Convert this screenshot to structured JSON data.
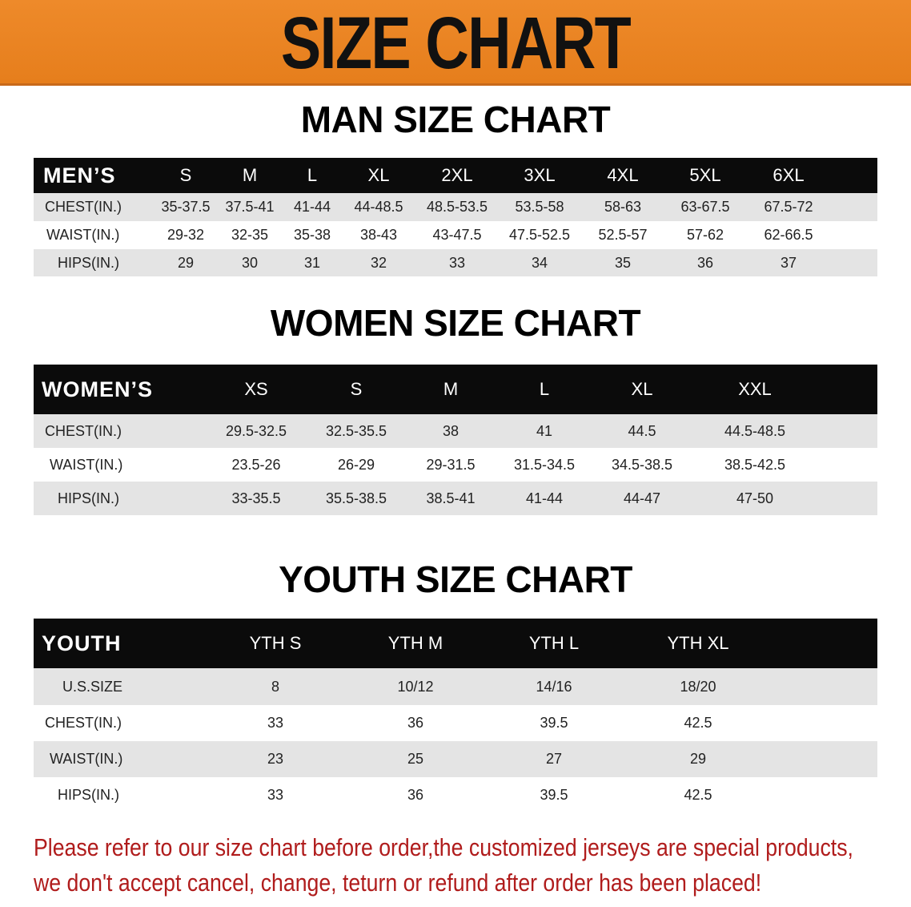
{
  "banner": {
    "title": "SIZE CHART",
    "color": "#e8831f"
  },
  "men": {
    "title": "MAN SIZE CHART",
    "header": [
      "MEN’S",
      "S",
      "M",
      "L",
      "XL",
      "2XL",
      "3XL",
      "4XL",
      "5XL",
      "6XL"
    ],
    "rows": [
      [
        "CHEST(IN.)",
        "35-37.5",
        "37.5-41",
        "41-44",
        "44-48.5",
        "48.5-53.5",
        "53.5-58",
        "58-63",
        "63-67.5",
        "67.5-72"
      ],
      [
        "WAIST(IN.)",
        "29-32",
        "32-35",
        "35-38",
        "38-43",
        "43-47.5",
        "47.5-52.5",
        "52.5-57",
        "57-62",
        "62-66.5"
      ],
      [
        "HIPS(IN.)",
        "29",
        "30",
        "31",
        "32",
        "33",
        "34",
        "35",
        "36",
        "37"
      ]
    ]
  },
  "women": {
    "title": "WOMEN SIZE CHART",
    "header": [
      "WOMEN’S",
      "XS",
      "S",
      "M",
      "L",
      "XL",
      "XXL"
    ],
    "rows": [
      [
        "CHEST(IN.)",
        "29.5-32.5",
        "32.5-35.5",
        "38",
        "41",
        "44.5",
        "44.5-48.5"
      ],
      [
        "WAIST(IN.)",
        "23.5-26",
        "26-29",
        "29-31.5",
        "31.5-34.5",
        "34.5-38.5",
        "38.5-42.5"
      ],
      [
        "HIPS(IN.)",
        "33-35.5",
        "35.5-38.5",
        "38.5-41",
        "41-44",
        "44-47",
        "47-50"
      ]
    ]
  },
  "youth": {
    "title": "YOUTH SIZE CHART",
    "header": [
      "YOUTH",
      "YTH S",
      "YTH M",
      "YTH L",
      "YTH XL"
    ],
    "rows": [
      [
        "U.S.SIZE",
        "8",
        "10/12",
        "14/16",
        "18/20"
      ],
      [
        "CHEST(IN.)",
        "33",
        "36",
        "39.5",
        "42.5"
      ],
      [
        "WAIST(IN.)",
        "23",
        "25",
        "27",
        "29"
      ],
      [
        "HIPS(IN.)",
        "33",
        "36",
        "39.5",
        "42.5"
      ]
    ]
  },
  "notice": {
    "line1": "Please refer to our size chart before order,the customized jerseys are special products,",
    "line2": "we don't accept cancel, change, teturn or refund after order has been placed!",
    "color": "#b01c1c"
  }
}
